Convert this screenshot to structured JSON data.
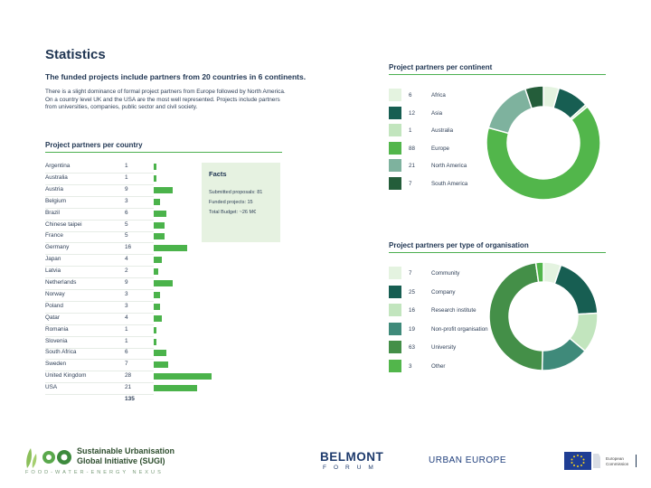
{
  "heading": {
    "title": "Statistics",
    "subtitle": "The funded projects include partners from 20 countries in 6 continents.",
    "intro": "There is a slight dominance of formal project partners from Europe followed by North America. On a country level UK and the USA are the most well represented. Projects include partners from universities, companies, public sector and civil society."
  },
  "country_section": {
    "heading": "Project partners per country",
    "total": "135"
  },
  "facts": {
    "heading": "Facts",
    "line1": "Submitted proposals: 81",
    "line2": "Funded projects: 15",
    "line3": "Total Budget: ~26 M€"
  },
  "continent_section": {
    "heading": "Project partners per continent"
  },
  "organisation_section": {
    "heading": "Project partners per type of organisation"
  },
  "chart_data": [
    {
      "type": "bar",
      "orientation": "horizontal",
      "title": "Project partners per country",
      "categories": [
        "Argentina",
        "Australia",
        "Austria",
        "Belgium",
        "Brazil",
        "Chinese taipei",
        "France",
        "Germany",
        "Japan",
        "Latvia",
        "Netherlands",
        "Norway",
        "Poland",
        "Qatar",
        "Romania",
        "Slovenia",
        "South Africa",
        "Sweden",
        "United Kingdom",
        "USA"
      ],
      "values": [
        1,
        1,
        9,
        3,
        6,
        5,
        5,
        16,
        4,
        2,
        9,
        3,
        3,
        4,
        1,
        1,
        6,
        7,
        28,
        21
      ],
      "color": "#4bb34b"
    },
    {
      "type": "pie",
      "donut": true,
      "title": "Project partners per continent",
      "labels": [
        "Africa",
        "Asia",
        "Australia",
        "Europe",
        "North America",
        "South America"
      ],
      "values": [
        6,
        12,
        1,
        88,
        21,
        7
      ],
      "colors": [
        "#e4f3e0",
        "#175e52",
        "#c2e5be",
        "#52b64b",
        "#7eb29e",
        "#245d3a"
      ]
    },
    {
      "type": "pie",
      "donut": true,
      "title": "Project partners per type of organisation",
      "labels": [
        "Community",
        "Company",
        "Research institute",
        "Non-profit organisation",
        "University",
        "Other"
      ],
      "values": [
        7,
        25,
        16,
        19,
        63,
        3
      ],
      "colors": [
        "#e4f3e0",
        "#175e52",
        "#c2e5be",
        "#3f8a7a",
        "#448f48",
        "#52b64b"
      ]
    }
  ],
  "footer": {
    "sugi_line1": "Sustainable Urbanisation",
    "sugi_line2": "Global Initiative (SUGI)",
    "sugi_tagline": "FOOD-WATER-ENERGY NEXUS",
    "belmont_name": "BELMONT",
    "belmont_forum": "FORUM",
    "urban_europe": "URBAN EUROPE",
    "ec_line1": "European",
    "ec_line2": "Commission"
  }
}
